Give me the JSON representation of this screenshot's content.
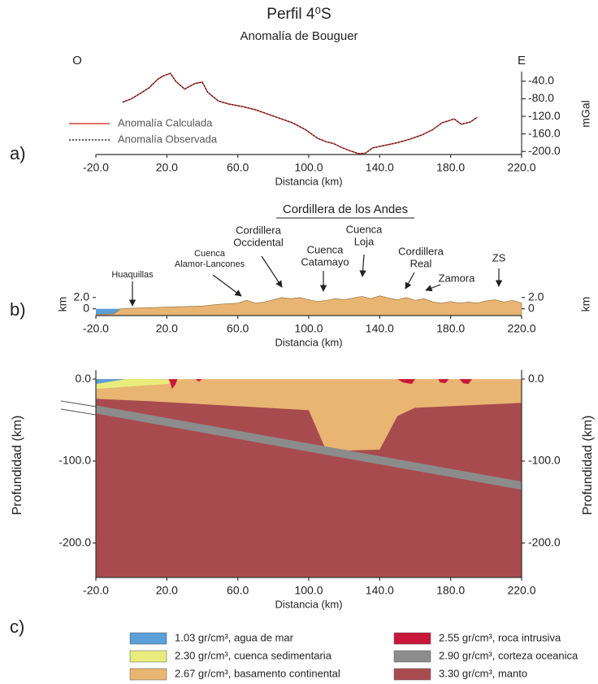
{
  "title": "Perfil 4⁰S",
  "chart_data": [
    {
      "type": "line",
      "panel_label": "a)",
      "title": "Anomalía de Bouguer",
      "x_label": "Distancia (km)",
      "y_label": "mGal",
      "left_label": "O",
      "right_label": "E",
      "xlim": [
        -20,
        220
      ],
      "xticks": [
        {
          "value": -20,
          "label": "-20.0"
        },
        {
          "value": 20,
          "label": "20.0"
        },
        {
          "value": 60,
          "label": "60.0"
        },
        {
          "value": 100,
          "label": "100.0"
        },
        {
          "value": 140,
          "label": "140.0"
        },
        {
          "value": 180,
          "label": "180.0"
        },
        {
          "value": 220,
          "label": "220.0"
        }
      ],
      "ylim": [
        -207,
        -18
      ],
      "yticks": [
        {
          "value": -40,
          "label": "-40.0"
        },
        {
          "value": -80,
          "label": "-80.0"
        },
        {
          "value": -120,
          "label": "-120.0"
        },
        {
          "value": -160,
          "label": "-160.0"
        },
        {
          "value": -200,
          "label": "-200.0"
        }
      ],
      "x": [
        -5,
        0,
        5,
        10,
        15,
        18,
        22,
        25,
        30,
        36,
        40,
        43,
        49,
        55,
        63,
        70,
        77,
        84,
        91,
        98,
        105,
        110,
        114,
        118,
        123,
        128,
        132,
        136,
        143,
        150,
        157,
        164,
        170,
        175,
        182,
        186,
        191,
        195
      ],
      "series": [
        {
          "name": "Anomalía Calculada",
          "color": "#d9473f",
          "dash": false,
          "values": [
            -88,
            -80,
            -68,
            -55,
            -35,
            -28,
            -22,
            -40,
            -58,
            -45,
            -42,
            -65,
            -85,
            -92,
            -98,
            -105,
            -115,
            -125,
            -135,
            -150,
            -170,
            -178,
            -182,
            -190,
            -198,
            -205,
            -204,
            -192,
            -186,
            -180,
            -172,
            -162,
            -150,
            -135,
            -126,
            -138,
            -133,
            -122
          ]
        },
        {
          "name": "Anomalía Observada",
          "color": "#222222",
          "dash": true,
          "values": [
            -88,
            -80,
            -68,
            -55,
            -35,
            -28,
            -22,
            -40,
            -58,
            -45,
            -42,
            -65,
            -85,
            -92,
            -98,
            -105,
            -115,
            -125,
            -135,
            -150,
            -170,
            -178,
            -182,
            -190,
            -198,
            -205,
            -204,
            -192,
            -186,
            -180,
            -172,
            -162,
            -150,
            -135,
            -126,
            -138,
            -133,
            -122
          ]
        }
      ]
    },
    {
      "type": "area",
      "panel_label": "b)",
      "x_label": "Distancia (km)",
      "y_label": "km",
      "color": "#e9b572",
      "sea_color": "#5a9fd8",
      "region_label": "Cordillera de los Andes",
      "annotations": [
        [
          "Huaquillas"
        ],
        [
          "Cuenca",
          "Alamor-Lancones"
        ],
        [
          "Cordillera",
          "Occidental"
        ],
        [
          "Cuenca",
          "Catamayo"
        ],
        [
          "Cuenca",
          "Loja"
        ],
        [
          "Cordillera",
          "Real"
        ],
        [
          "Zamora"
        ],
        [
          "ZS"
        ]
      ],
      "xlim": [
        -20,
        220
      ],
      "xticks": [
        {
          "value": -20,
          "label": "-20.0"
        },
        {
          "value": 20,
          "label": "20.0"
        },
        {
          "value": 60,
          "label": "60.0"
        },
        {
          "value": 100,
          "label": "100.0"
        },
        {
          "value": 140,
          "label": "140.0"
        },
        {
          "value": 180,
          "label": "180.0"
        },
        {
          "value": 220,
          "label": "220.0"
        }
      ],
      "ylim": [
        -1.2,
        2.4
      ],
      "yticks": [
        0,
        {
          "value": 2,
          "label": "2.0"
        }
      ],
      "x": [
        -20,
        -10,
        -6,
        0,
        10,
        20,
        30,
        40,
        50,
        60,
        65,
        70,
        75,
        80,
        85,
        90,
        95,
        100,
        105,
        110,
        115,
        120,
        125,
        130,
        135,
        140,
        145,
        150,
        155,
        160,
        165,
        170,
        175,
        180,
        185,
        190,
        195,
        200,
        205,
        210,
        215,
        220
      ],
      "values": [
        -1.0,
        -0.9,
        0,
        0.1,
        0.2,
        0.3,
        0.4,
        0.5,
        0.8,
        1.0,
        1.5,
        1.0,
        1.2,
        1.6,
        2.0,
        1.8,
        2.0,
        1.6,
        1.3,
        1.5,
        1.8,
        1.6,
        1.9,
        2.2,
        1.8,
        2.3,
        1.9,
        1.6,
        2.0,
        1.5,
        1.8,
        1.2,
        1.0,
        1.3,
        1.0,
        1.2,
        1.0,
        1.4,
        1.6,
        1.2,
        1.5,
        1.0
      ]
    },
    {
      "type": "section",
      "panel_label": "c)",
      "x_label": "Distancia (km)",
      "y_label": "Profundidad (km)",
      "xlim": [
        -20,
        220
      ],
      "xticks": [
        {
          "value": -20,
          "label": "-20.0"
        },
        {
          "value": 20,
          "label": "20.0"
        },
        {
          "value": 60,
          "label": "60.0"
        },
        {
          "value": 100,
          "label": "100.0"
        },
        {
          "value": 140,
          "label": "140.0"
        },
        {
          "value": 180,
          "label": "180.0"
        },
        {
          "value": 220,
          "label": "220.0"
        }
      ],
      "ylim": [
        -242,
        11
      ],
      "yticks": [
        {
          "value": 0,
          "label": "0.0"
        },
        {
          "value": -100,
          "label": "-100.0"
        },
        {
          "value": -200,
          "label": "-200.0"
        }
      ],
      "layers": [
        {
          "name": "1.03 gr/cm³, agua de mar",
          "color": "#5a9fd8",
          "shapes": [
            {
              "x": [
                -20,
                -3,
                -20
              ],
              "y": [
                0,
                0,
                -6
              ]
            }
          ]
        },
        {
          "name": "2.30 gr/cm³, cuenca sedimentaria",
          "color": "#e8ec7c",
          "shapes": [
            {
              "x": [
                -20,
                -5,
                10,
                25,
                30,
                20,
                0,
                -20
              ],
              "y": [
                -6,
                0,
                0,
                -1,
                0,
                -6,
                -9,
                -12
              ]
            }
          ]
        },
        {
          "name": "2.67 gr/cm³, basamento continental",
          "color": "#e9b572",
          "shapes": [
            {
              "x": [
                -20,
                220,
                220,
                160,
                150,
                140,
                110,
                100,
                60,
                10,
                -20
              ],
              "y": [
                0,
                0,
                -29,
                -35,
                -45,
                -86,
                -88,
                -38,
                -33,
                -27,
                -24
              ]
            }
          ]
        },
        {
          "name": "2.55 gr/cm³, roca intrusiva",
          "color": "#c8173a",
          "shapes": [
            {
              "x": [
                21,
                26,
                25,
                23,
                22
              ],
              "y": [
                0,
                0,
                -6,
                -12,
                -5
              ]
            },
            {
              "x": [
                36,
                40,
                38
              ],
              "y": [
                0,
                0,
                -3
              ]
            },
            {
              "x": [
                150,
                160,
                158,
                153
              ],
              "y": [
                0,
                0,
                -6,
                -4
              ]
            },
            {
              "x": [
                173,
                179,
                177,
                174
              ],
              "y": [
                0,
                0,
                -5,
                -4
              ]
            },
            {
              "x": [
                185,
                192,
                190,
                187
              ],
              "y": [
                0,
                0,
                -6,
                -5
              ]
            }
          ]
        },
        {
          "name": "2.90 gr/cm³, corteza oceanica",
          "color": "#8c8c8c",
          "shapes": [
            {
              "x": [
                -20,
                220,
                220,
                -20
              ],
              "y": [
                -32,
                -125,
                -135,
                -42
              ]
            }
          ]
        },
        {
          "name": "3.30 gr/cm³, manto",
          "color": "#a84b4f",
          "shapes": [
            {
              "x": [
                -20,
                220,
                220,
                -20
              ],
              "y": [
                -20,
                -20,
                -242,
                -242
              ]
            }
          ]
        }
      ]
    }
  ]
}
